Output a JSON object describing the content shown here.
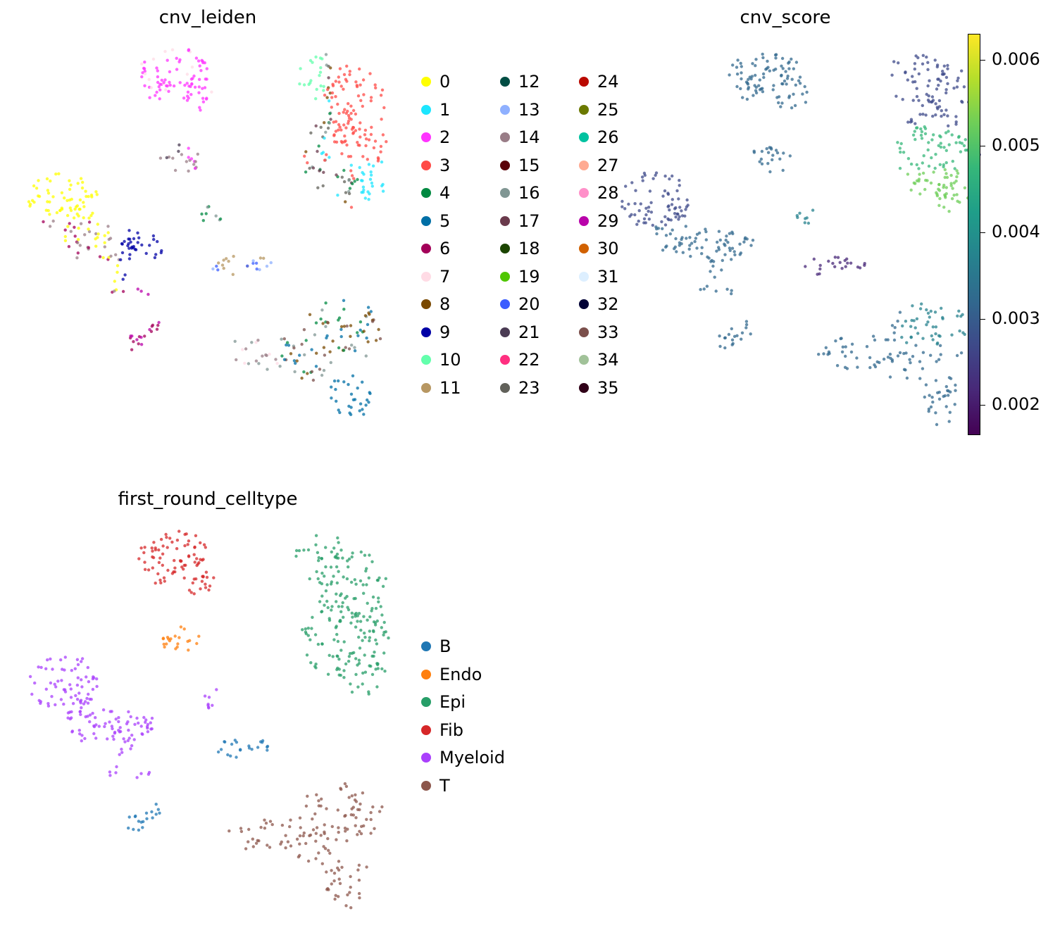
{
  "colors": {
    "leiden": [
      "#ffff00",
      "#1ce6ff",
      "#ff34ff",
      "#ff4a46",
      "#008941",
      "#006fa6",
      "#a30059",
      "#ffdbe5",
      "#7a4900",
      "#0000a6",
      "#63ffac",
      "#b79762",
      "#004d43",
      "#8fb0ff",
      "#997d87",
      "#5a0007",
      "#809693",
      "#6a3a4c",
      "#1b4400",
      "#4fc601",
      "#3b5dff",
      "#4a3b53",
      "#ff2f80",
      "#61615a",
      "#ba0900",
      "#6b7900",
      "#00c2a0",
      "#ffaa92",
      "#ff90c9",
      "#b903aa",
      "#d16100",
      "#ddefff",
      "#000035",
      "#7b4f4b",
      "#a1c299",
      "#300018"
    ],
    "celltype": [
      "#1f77b4",
      "#ff7f0e",
      "#279e68",
      "#d62728",
      "#aa40fc",
      "#8c564b"
    ],
    "viridis": [
      "#440154",
      "#482878",
      "#3e4989",
      "#31688e",
      "#26828e",
      "#1f9e89",
      "#35b779",
      "#6ece58",
      "#b5de2b",
      "#fde725"
    ]
  },
  "chart_data": [
    {
      "type": "scatter",
      "title": "cnv_leiden",
      "legend_title": "",
      "categories": [
        "0",
        "1",
        "2",
        "3",
        "4",
        "5",
        "6",
        "7",
        "8",
        "9",
        "10",
        "11",
        "12",
        "13",
        "14",
        "15",
        "16",
        "17",
        "18",
        "19",
        "20",
        "21",
        "22",
        "23",
        "24",
        "25",
        "26",
        "27",
        "28",
        "29",
        "30",
        "31",
        "32",
        "33",
        "34",
        "35"
      ],
      "legend_placement": "right"
    },
    {
      "type": "scatter",
      "title": "cnv_score",
      "colormap": "viridis",
      "colorbar_range": [
        0.00165,
        0.0063
      ],
      "colorbar_ticks": [
        "0.002",
        "0.003",
        "0.004",
        "0.005",
        "0.006"
      ],
      "colorbar_tick_values": [
        0.002,
        0.003,
        0.004,
        0.005,
        0.006
      ]
    },
    {
      "type": "scatter",
      "title": "first_round_celltype",
      "categories": [
        "B",
        "Endo",
        "Epi",
        "Fib",
        "Myeloid",
        "T"
      ],
      "legend_placement": "right"
    }
  ]
}
